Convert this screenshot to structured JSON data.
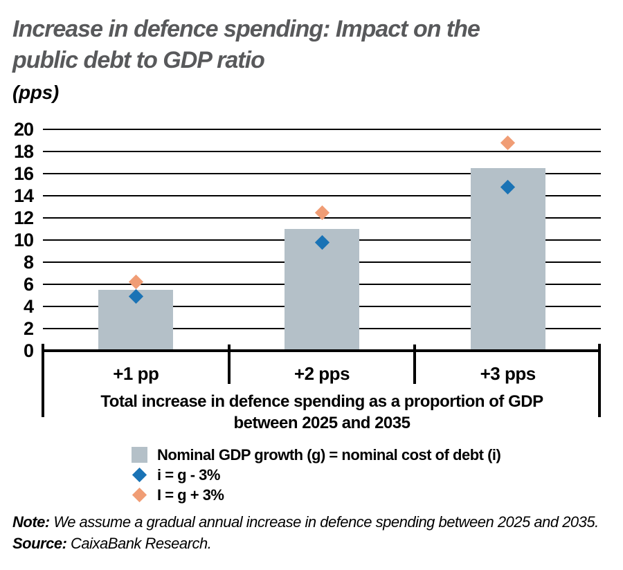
{
  "header": {
    "title_line1": "Increase in defence spending: Impact on the",
    "title_line2": "public debt to GDP ratio",
    "unit": "(pps)"
  },
  "chart_data": {
    "type": "bar",
    "title": "Increase in defence spending: Impact on the public debt to GDP ratio",
    "unit": "(pps)",
    "categories": [
      "+1 pp",
      "+2 pps",
      "+3 pps"
    ],
    "series": [
      {
        "name": "Nominal GDP growth (g) = nominal cost of debt (i)",
        "type": "bar",
        "color": "#b4c0c8",
        "values": [
          5.5,
          11.0,
          16.5
        ]
      },
      {
        "name": "i = g - 3%",
        "type": "diamond",
        "color": "#1a73b5",
        "values": [
          4.9,
          9.8,
          14.8
        ]
      },
      {
        "name": "I = g + 3%",
        "type": "diamond",
        "color": "#f09d75",
        "values": [
          6.2,
          12.5,
          18.8
        ]
      }
    ],
    "xlabel": "Total increase in defence spending as a proportion of GDP between 2025 and 2035",
    "ylabel": "",
    "ylim": [
      0,
      20
    ],
    "ytick_step": 2,
    "grid": true,
    "legend_position": "bottom-left"
  },
  "x_axis": {
    "label_line1": "Total increase in defence spending as a proportion of GDP",
    "label_line2": "between 2025 and 2035"
  },
  "footer": {
    "note_label": "Note:",
    "note_text": " We assume a gradual annual increase in defence spending between 2025 and 2035.",
    "source_label": "Source:",
    "source_text": " CaixaBank Research."
  },
  "colors": {
    "bar_gray": "#b4c0c8",
    "diamond_blue": "#1a73b5",
    "diamond_orange": "#f09d75",
    "title_gray": "#58595b",
    "axis_black": "#000000"
  }
}
